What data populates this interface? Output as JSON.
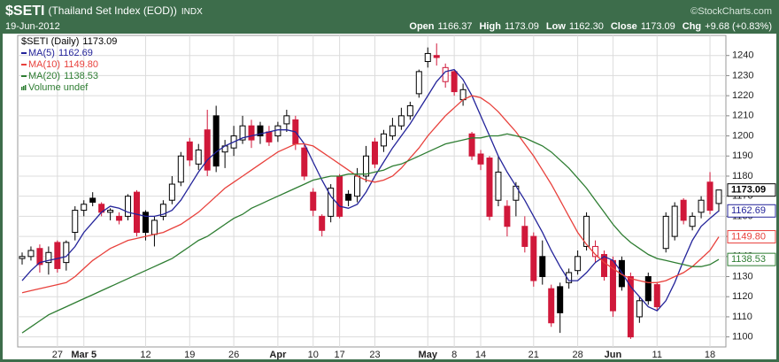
{
  "chart_data": {
    "type": "candlestick",
    "title": "$SETI",
    "subtitle": "(Thailand Set Index (EOD))",
    "exchange": "INDX",
    "date": "19-Jun-2012",
    "credit": "©StockCharts.com",
    "quote": [
      {
        "label": "Open",
        "text": "1166.37"
      },
      {
        "label": "High",
        "text": "1173.09"
      },
      {
        "label": "Low",
        "text": "1162.30"
      },
      {
        "label": "Close",
        "text": "1173.09"
      },
      {
        "label": "Chg",
        "text": "+9.68 (+0.83%)"
      }
    ],
    "categories": [
      null,
      null,
      null,
      null,
      "27",
      null,
      null,
      "Mar 5",
      null,
      null,
      null,
      null,
      null,
      null,
      "12",
      null,
      null,
      null,
      null,
      "19",
      null,
      null,
      null,
      null,
      "26",
      null,
      null,
      null,
      null,
      "Apr",
      null,
      null,
      null,
      "10",
      null,
      null,
      "17",
      null,
      null,
      null,
      "23",
      null,
      null,
      null,
      null,
      null,
      "May",
      null,
      null,
      "8",
      null,
      null,
      "14",
      null,
      null,
      null,
      null,
      null,
      "21",
      null,
      null,
      null,
      null,
      "28",
      null,
      null,
      null,
      "Jun",
      null,
      null,
      null,
      null,
      "11",
      null,
      null,
      null,
      null,
      null,
      "18",
      null
    ],
    "price": {
      "name": "$SETI (Daily)",
      "last_label": "1173.09",
      "up_color": "#000000",
      "down_color": "#d0183a",
      "open": [
        1139,
        1140,
        1144,
        1137,
        1147,
        1137,
        1152,
        1163,
        1169,
        1166,
        1162,
        1160,
        1160,
        1172,
        1162,
        1151,
        1160,
        1168,
        1177,
        1197,
        1186,
        1203,
        1210,
        1192,
        1194,
        1198,
        1205,
        1205,
        1202,
        1200,
        1206,
        1208,
        1194,
        1172,
        1160,
        1160,
        1180,
        1171,
        1170,
        1180,
        1197,
        1195,
        1200,
        1205,
        1210,
        1221,
        1237,
        1240,
        1227,
        1232,
        1218,
        1201,
        1191,
        1189,
        1168,
        1165,
        1168,
        1155,
        1150,
        1140,
        1124,
        1125,
        1127,
        1133,
        1145,
        1140,
        1141,
        1138,
        1138,
        1130,
        1110,
        1130,
        1126,
        1144,
        1150,
        1168,
        1155,
        1162,
        1177,
        1166.37
      ],
      "high": [
        1142,
        1145,
        1146,
        1145,
        1148,
        1148,
        1165,
        1168,
        1172,
        1167,
        1164,
        1162,
        1171,
        1173,
        1163,
        1160,
        1168,
        1180,
        1192,
        1199,
        1196,
        1213,
        1215,
        1198,
        1205,
        1210,
        1208,
        1207,
        1205,
        1207,
        1213,
        1210,
        1196,
        1174,
        1161,
        1176,
        1181,
        1173,
        1184,
        1195,
        1199,
        1203,
        1209,
        1214,
        1217,
        1233,
        1244,
        1246,
        1236,
        1233,
        1226,
        1202,
        1193,
        1190,
        1190,
        1168,
        1177,
        1160,
        1152,
        1148,
        1126,
        1127,
        1134,
        1143,
        1162,
        1148,
        1143,
        1140,
        1140,
        1132,
        1120,
        1132,
        1127,
        1162,
        1167,
        1169,
        1162,
        1170,
        1182,
        1173.09
      ],
      "low": [
        1136,
        1138,
        1132,
        1131,
        1132,
        1133,
        1148,
        1160,
        1165,
        1160,
        1158,
        1156,
        1158,
        1150,
        1148,
        1145,
        1158,
        1166,
        1175,
        1185,
        1183,
        1180,
        1182,
        1184,
        1190,
        1196,
        1194,
        1196,
        1195,
        1197,
        1202,
        1193,
        1178,
        1160,
        1150,
        1157,
        1159,
        1165,
        1167,
        1177,
        1184,
        1192,
        1198,
        1203,
        1208,
        1219,
        1234,
        1235,
        1224,
        1220,
        1215,
        1188,
        1183,
        1158,
        1165,
        1150,
        1160,
        1142,
        1125,
        1126,
        1105,
        1102,
        1124,
        1131,
        1143,
        1137,
        1128,
        1110,
        1123,
        1099,
        1107,
        1116,
        1113,
        1142,
        1148,
        1156,
        1153,
        1159,
        1161,
        1162.3
      ],
      "close": [
        1140,
        1143,
        1136,
        1142,
        1134,
        1147,
        1163,
        1166,
        1167,
        1162,
        1163,
        1158,
        1170,
        1152,
        1152,
        1158,
        1166,
        1176,
        1190,
        1188,
        1193,
        1183,
        1185,
        1195,
        1200,
        1205,
        1198,
        1200,
        1197,
        1205,
        1210,
        1196,
        1180,
        1163,
        1153,
        1174,
        1160,
        1168,
        1180,
        1190,
        1186,
        1201,
        1205,
        1210,
        1215,
        1232,
        1241,
        1239,
        1234,
        1222,
        1223,
        1190,
        1186,
        1160,
        1182,
        1155,
        1175,
        1145,
        1128,
        1130,
        1107,
        1112,
        1132,
        1140,
        1160,
        1145,
        1130,
        1113,
        1125,
        1100,
        1118,
        1118,
        1115,
        1160,
        1165,
        1158,
        1160,
        1168,
        1163,
        1173.09
      ]
    },
    "series": [
      {
        "name": "MA(5)",
        "last_label": "1162.69",
        "color": "#24249a",
        "values": [
          1128,
          1133,
          1137,
          1138,
          1139,
          1140,
          1145,
          1152,
          1157,
          1162,
          1165,
          1164,
          1162,
          1161,
          1160,
          1160,
          1161,
          1163,
          1168,
          1175,
          1182,
          1188,
          1192,
          1195,
          1197,
          1199,
          1200,
          1201,
          1202,
          1203,
          1203,
          1202,
          1196,
          1187,
          1178,
          1170,
          1165,
          1164,
          1166,
          1172,
          1180,
          1187,
          1194,
          1200,
          1206,
          1213,
          1220,
          1227,
          1232,
          1233,
          1228,
          1220,
          1210,
          1200,
          1190,
          1182,
          1175,
          1168,
          1160,
          1152,
          1143,
          1135,
          1128,
          1128,
          1132,
          1137,
          1140,
          1138,
          1132,
          1125,
          1120,
          1115,
          1113,
          1118,
          1127,
          1138,
          1148,
          1155,
          1159,
          1162.69
        ]
      },
      {
        "name": "MA(10)",
        "last_label": "1149.80",
        "color": "#e8413c",
        "values": [
          1122,
          1123,
          1124,
          1125,
          1126,
          1127,
          1130,
          1134,
          1138,
          1141,
          1144,
          1146,
          1148,
          1149,
          1150,
          1151,
          1152,
          1154,
          1156,
          1159,
          1162,
          1166,
          1170,
          1174,
          1177,
          1180,
          1183,
          1186,
          1189,
          1192,
          1194,
          1196,
          1196,
          1195,
          1192,
          1189,
          1186,
          1183,
          1180,
          1178,
          1177,
          1178,
          1180,
          1184,
          1189,
          1194,
          1200,
          1205,
          1210,
          1214,
          1218,
          1220,
          1219,
          1216,
          1212,
          1207,
          1202,
          1196,
          1190,
          1183,
          1176,
          1168,
          1160,
          1152,
          1146,
          1141,
          1137,
          1134,
          1131,
          1129,
          1128,
          1127,
          1127,
          1128,
          1130,
          1132,
          1135,
          1139,
          1143,
          1149.8
        ]
      },
      {
        "name": "MA(20)",
        "last_label": "1138.53",
        "color": "#2e7d32",
        "values": [
          1102,
          1105,
          1108,
          1111,
          1113,
          1115,
          1117,
          1119,
          1121,
          1123,
          1125,
          1127,
          1129,
          1131,
          1133,
          1135,
          1137,
          1139,
          1142,
          1145,
          1148,
          1150,
          1153,
          1156,
          1159,
          1161,
          1164,
          1166,
          1168,
          1170,
          1172,
          1174,
          1176,
          1178,
          1179,
          1180,
          1180,
          1181,
          1181,
          1181,
          1182,
          1183,
          1185,
          1186,
          1188,
          1190,
          1192,
          1194,
          1196,
          1197,
          1198,
          1199,
          1199,
          1200,
          1200,
          1201,
          1200,
          1199,
          1197,
          1195,
          1192,
          1188,
          1184,
          1179,
          1174,
          1168,
          1162,
          1156,
          1151,
          1147,
          1144,
          1141,
          1139,
          1138,
          1137,
          1136,
          1135,
          1135,
          1136,
          1138.53
        ]
      }
    ],
    "volume_legend": {
      "text": "Volume undef",
      "color": "#2e7d32"
    },
    "ylim": [
      1095,
      1250
    ],
    "yticks": [
      1100,
      1110,
      1120,
      1130,
      1140,
      1150,
      1160,
      1170,
      1180,
      1190,
      1200,
      1210,
      1220,
      1230,
      1240
    ],
    "grid": true
  }
}
